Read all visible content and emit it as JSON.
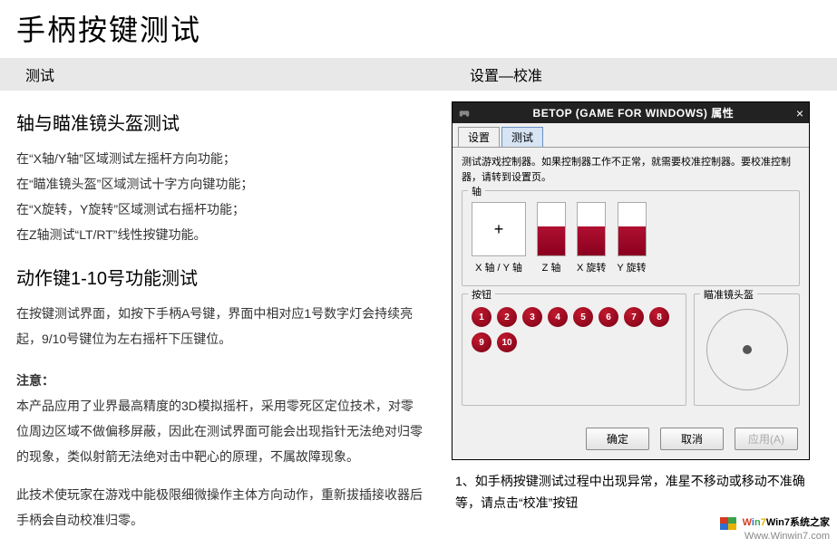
{
  "page_title": "手柄按键测试",
  "headers": {
    "left": "测试",
    "right": "设置—校准"
  },
  "left": {
    "section1_title": "轴与瞄准镜头盔测试",
    "line1": "在“X轴/Y轴”区域测试左摇杆方向功能；",
    "line2": "在“瞄准镜头盔”区域测试十字方向键功能；",
    "line3": "在“X旋转，Y旋转”区域测试右摇杆功能；",
    "line4": "在Z轴测试“LT/RT”线性按键功能。",
    "section2_title": "动作键1-10号功能测试",
    "section2_body": "在按键测试界面，如按下手柄A号键，界面中相对应1号数字灯会持续亮起，9/10号键位为左右摇杆下压键位。",
    "note_label": "注意：",
    "note_body": "本产品应用了业界最高精度的3D模拟摇杆，采用零死区定位技术，对零位周边区域不做偏移屏蔽，因此在测试界面可能会出现指针无法绝对归零的现象，类似射箭无法绝对击中靶心的原理，不属故障现象。",
    "note_body2": "此技术使玩家在游戏中能极限细微操作主体方向动作，重新拔插接收器后手柄会自动校准归零。"
  },
  "dialog": {
    "title": "BETOP (GAME FOR WINDOWS) 属性",
    "close_symbol": "×",
    "tab_settings": "设置",
    "tab_test": "测试",
    "description": "测试游戏控制器。如果控制器工作不正常，就需要校准控制器。要校准控制器，请转到设置页。",
    "group_axis": "轴",
    "group_buttons": "按钮",
    "group_scope": "瞄准镜头盔",
    "axis_xy_label": "X 轴 / Y 轴",
    "axis_xy_symbol": "+",
    "bars": [
      {
        "fill_pct": 55,
        "label": "Z 轴",
        "color_top": "#b01030",
        "color_bottom": "#8a001f"
      },
      {
        "fill_pct": 55,
        "label": "X 旋转",
        "color_top": "#b01030",
        "color_bottom": "#8a001f"
      },
      {
        "fill_pct": 55,
        "label": "Y 旋转",
        "color_top": "#b01030",
        "color_bottom": "#8a001f"
      }
    ],
    "buttons": [
      "1",
      "2",
      "3",
      "4",
      "5",
      "6",
      "7",
      "8",
      "9",
      "10"
    ],
    "button_color_center": "#c21a2f",
    "button_color_edge": "#7a0015",
    "footer": {
      "ok": "确定",
      "cancel": "取消",
      "apply": "应用(A)"
    }
  },
  "step1": "1、如手柄按键测试过程中出现异常，准星不移动或移动不准确等，请点击“校准”按钮",
  "watermark": {
    "brand_cn": "Win7系统之家",
    "url": "Www.Winwin7.com"
  }
}
